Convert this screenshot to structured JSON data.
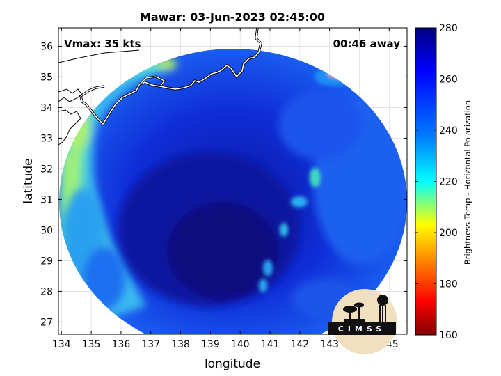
{
  "chart_data": {
    "type": "heatmap",
    "title": "Mawar: 03-Jun-2023 02:45:00",
    "xlabel": "longitude",
    "ylabel": "latitude",
    "xlim": [
      133.9,
      145.6
    ],
    "ylim": [
      26.6,
      36.6
    ],
    "xticks": [
      "134",
      "135",
      "136",
      "137",
      "138",
      "139",
      "140",
      "141",
      "142",
      "143",
      "144",
      "145"
    ],
    "yticks": [
      "27",
      "28",
      "29",
      "30",
      "31",
      "32",
      "33",
      "34",
      "35",
      "36"
    ],
    "grid": true,
    "annotations": {
      "vmax": "Vmax: 35 kts",
      "away": "00:46 away"
    },
    "colorbar": {
      "label": "Brightness Temp - Horizontal Polarization",
      "range": [
        160,
        280
      ],
      "ticks": [
        "160",
        "180",
        "200",
        "220",
        "240",
        "260",
        "280"
      ],
      "colormap": "jet",
      "colors": [
        "#800000",
        "#ff0000",
        "#ff8000",
        "#ffff00",
        "#80ff80",
        "#00ffff",
        "#0080ff",
        "#0000ff",
        "#000080"
      ]
    },
    "swath": {
      "center": [
        140.05,
        31.6
      ],
      "radius_deg_lon": 5.65,
      "radius_deg_lat": 4.95,
      "background_tb": 255,
      "features": [
        {
          "kind": "coastal-warm",
          "lon": 134.6,
          "lat": 31.2,
          "tb": 222
        },
        {
          "kind": "coastal-warm",
          "lon": 135.2,
          "lat": 33.4,
          "tb": 228
        },
        {
          "kind": "coastal-warm",
          "lon": 136.8,
          "lat": 35.4,
          "tb": 236
        },
        {
          "kind": "warm-spot",
          "lon": 143.5,
          "lat": 35.3,
          "tb": 205
        },
        {
          "kind": "cold-core",
          "lon": 139.2,
          "lat": 30.6,
          "tb": 270
        },
        {
          "kind": "band",
          "lon": 142.5,
          "lat": 31.8,
          "tb": 238
        },
        {
          "kind": "band",
          "lon": 141.3,
          "lat": 29.6,
          "tb": 242
        },
        {
          "kind": "band",
          "lon": 140.7,
          "lat": 28.2,
          "tb": 244
        }
      ]
    }
  },
  "logo": {
    "text": "CIMSS"
  }
}
